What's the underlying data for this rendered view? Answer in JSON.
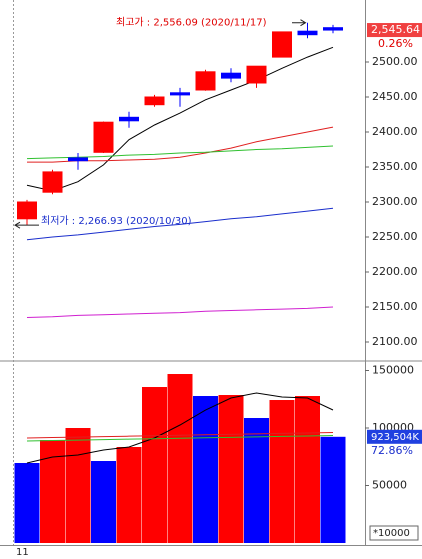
{
  "chart_data": [
    {
      "type": "candlestick",
      "categories": [
        null,
        null,
        null,
        null,
        null,
        null,
        null,
        null,
        null,
        null,
        null,
        null,
        null
      ],
      "month_label": "11",
      "open": [
        2276,
        2314,
        2363,
        2371,
        2421,
        2439,
        2456,
        2460,
        2484,
        2470,
        2507,
        2544,
        2549
      ],
      "high": [
        2303,
        2346,
        2370,
        2415,
        2429,
        2453,
        2463,
        2489,
        2491,
        2494,
        2543,
        2556.09,
        2553
      ],
      "low": [
        2266.93,
        2311,
        2346,
        2370,
        2406,
        2436,
        2436,
        2459,
        2471,
        2463,
        2507,
        2534,
        2541
      ],
      "close": [
        2300,
        2343,
        2359,
        2414,
        2416,
        2450,
        2453,
        2486,
        2477,
        2494,
        2543,
        2539,
        2545.64
      ],
      "up_color": "#ff0000",
      "down_color": "#0000ff",
      "lines": [
        {
          "color": "#000000",
          "values": [
            2324,
            2316,
            2329,
            2353,
            2389,
            2410,
            2427,
            2446,
            2460,
            2474,
            2491,
            2507,
            2521
          ]
        },
        {
          "color": "#e02020",
          "values": [
            2357,
            2357,
            2359,
            2359,
            2360,
            2361,
            2364,
            2370,
            2377,
            2386,
            2393,
            2400,
            2407
          ]
        },
        {
          "color": "#30c030",
          "values": [
            2362,
            2363,
            2364,
            2365,
            2367,
            2368,
            2370,
            2371,
            2373,
            2375,
            2376,
            2378,
            2380
          ]
        },
        {
          "color": "#1a2ecc",
          "values": [
            2246,
            2250,
            2253,
            2257,
            2261,
            2265,
            2268,
            2272,
            2276,
            2279,
            2283,
            2287,
            2291
          ]
        },
        {
          "color": "#d020d0",
          "values": [
            2135,
            2136,
            2138,
            2139,
            2140,
            2141,
            2142,
            2144,
            2145,
            2146,
            2147,
            2148,
            2150
          ]
        }
      ],
      "high_annotation": "최고가 : 2,556.09 (2020/11/17)",
      "low_annotation": "최저가 : 2,266.93 (2020/10/30)",
      "last_label": "2,545.64",
      "change_label": "0.26%",
      "ylim": [
        2074.29,
        2588.57
      ],
      "yticks": [
        {
          "value": 2500,
          "label": "2500.00"
        },
        {
          "value": 2450,
          "label": "2450.00"
        },
        {
          "value": 2400,
          "label": "2400.00"
        },
        {
          "value": 2350,
          "label": "2350.00"
        },
        {
          "value": 2300,
          "label": "2300.00"
        },
        {
          "value": 2250,
          "label": "2250.00"
        },
        {
          "value": 2200,
          "label": "2200.00"
        },
        {
          "value": 2150,
          "label": "2150.00"
        },
        {
          "value": 2100,
          "label": "2100.00"
        }
      ]
    },
    {
      "type": "bar",
      "values": [
        69565,
        89565,
        100000,
        71304,
        83478,
        135652,
        146957,
        127826,
        128696,
        108696,
        124348,
        127826,
        92350.4
      ],
      "colors": [
        "#0000ff",
        "#ff0000",
        "#ff0000",
        "#0000ff",
        "#ff0000",
        "#ff0000",
        "#ff0000",
        "#0000ff",
        "#ff0000",
        "#0000ff",
        "#ff0000",
        "#ff0000",
        "#0000ff"
      ],
      "lines": [
        {
          "color": "#000000",
          "values": [
            69565,
            74783,
            76522,
            80870,
            83478,
            91304,
            102609,
            115652,
            126087,
            130435,
            126957,
            126087,
            115652
          ]
        },
        {
          "color": "#e02020",
          "values": [
            91304,
            91700,
            92100,
            92500,
            92900,
            93300,
            93700,
            94100,
            94500,
            94900,
            95300,
            95700,
            96087
          ]
        },
        {
          "color": "#30c030",
          "values": [
            88696,
            89100,
            89500,
            89900,
            90300,
            90700,
            91100,
            91500,
            91900,
            92300,
            92700,
            93100,
            93478
          ]
        }
      ],
      "last_label": "923,504K",
      "change_label": "72.86%",
      "unit_label": "*10000",
      "ylim": [
        0,
        157400
      ],
      "yticks": [
        150000,
        100000,
        50000
      ]
    }
  ]
}
